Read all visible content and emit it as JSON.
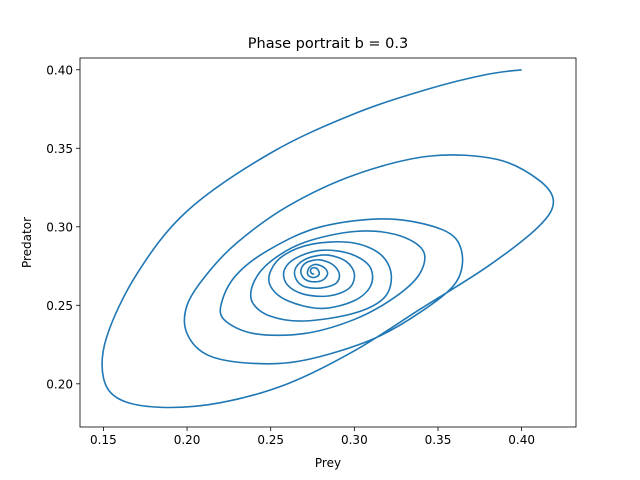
{
  "chart_data": {
    "type": "line",
    "title": "Phase portrait b = 0.3",
    "xlabel": "Prey",
    "ylabel": "Predator",
    "xlim": [
      0.136,
      0.4325
    ],
    "ylim": [
      0.1725,
      0.4075
    ],
    "xticks": [
      0.15,
      0.2,
      0.25,
      0.3,
      0.35,
      0.4
    ],
    "xtick_labels": [
      "0.15",
      "0.20",
      "0.25",
      "0.30",
      "0.35",
      "0.40"
    ],
    "yticks": [
      0.2,
      0.25,
      0.3,
      0.35,
      0.4
    ],
    "ytick_labels": [
      "0.20",
      "0.25",
      "0.30",
      "0.35",
      "0.40"
    ],
    "grid": false,
    "line_color": "#1f77b4",
    "series": [
      {
        "x": [
          0.4,
          0.379,
          0.345,
          0.3,
          0.25,
          0.2,
          0.17,
          0.152,
          0.15,
          0.16,
          0.185,
          0.22,
          0.26,
          0.3,
          0.34,
          0.38,
          0.41,
          0.419,
          0.41,
          0.385,
          0.345,
          0.3,
          0.26,
          0.23,
          0.212,
          0.2,
          0.2,
          0.213,
          0.24,
          0.27,
          0.31,
          0.34,
          0.361,
          0.364,
          0.353,
          0.32,
          0.28,
          0.25,
          0.23,
          0.221,
          0.222,
          0.24,
          0.27,
          0.3,
          0.324,
          0.339,
          0.341,
          0.325,
          0.3,
          0.27,
          0.25,
          0.24,
          0.239,
          0.25,
          0.27,
          0.3,
          0.318,
          0.322,
          0.315,
          0.298,
          0.275,
          0.258,
          0.25,
          0.25,
          0.26,
          0.28,
          0.3,
          0.31,
          0.309,
          0.297,
          0.28,
          0.265,
          0.258,
          0.26,
          0.27,
          0.285,
          0.297,
          0.3,
          0.295,
          0.284,
          0.272,
          0.265,
          0.265,
          0.27,
          0.28,
          0.289,
          0.291,
          0.287,
          0.279,
          0.271,
          0.268,
          0.27,
          0.275,
          0.281,
          0.284,
          0.282,
          0.277,
          0.273,
          0.272,
          0.274,
          0.277,
          0.279,
          0.278,
          0.276,
          0.274,
          0.274,
          0.275,
          0.276
        ],
        "y": [
          0.4,
          0.397,
          0.388,
          0.372,
          0.347,
          0.31,
          0.27,
          0.23,
          0.204,
          0.19,
          0.185,
          0.188,
          0.2,
          0.221,
          0.248,
          0.275,
          0.3,
          0.316,
          0.33,
          0.343,
          0.345,
          0.333,
          0.313,
          0.29,
          0.27,
          0.25,
          0.232,
          0.218,
          0.213,
          0.215,
          0.228,
          0.246,
          0.265,
          0.285,
          0.298,
          0.305,
          0.3,
          0.286,
          0.27,
          0.253,
          0.241,
          0.232,
          0.232,
          0.241,
          0.255,
          0.27,
          0.285,
          0.295,
          0.297,
          0.29,
          0.278,
          0.265,
          0.252,
          0.243,
          0.24,
          0.245,
          0.255,
          0.27,
          0.283,
          0.29,
          0.289,
          0.282,
          0.272,
          0.262,
          0.253,
          0.248,
          0.253,
          0.263,
          0.275,
          0.283,
          0.285,
          0.28,
          0.272,
          0.263,
          0.257,
          0.256,
          0.261,
          0.27,
          0.278,
          0.282,
          0.28,
          0.274,
          0.267,
          0.262,
          0.261,
          0.264,
          0.27,
          0.276,
          0.279,
          0.277,
          0.272,
          0.267,
          0.265,
          0.266,
          0.27,
          0.274,
          0.276,
          0.274,
          0.27,
          0.268,
          0.268,
          0.27,
          0.273,
          0.274,
          0.273,
          0.271,
          0.27,
          0.27
        ]
      }
    ]
  }
}
